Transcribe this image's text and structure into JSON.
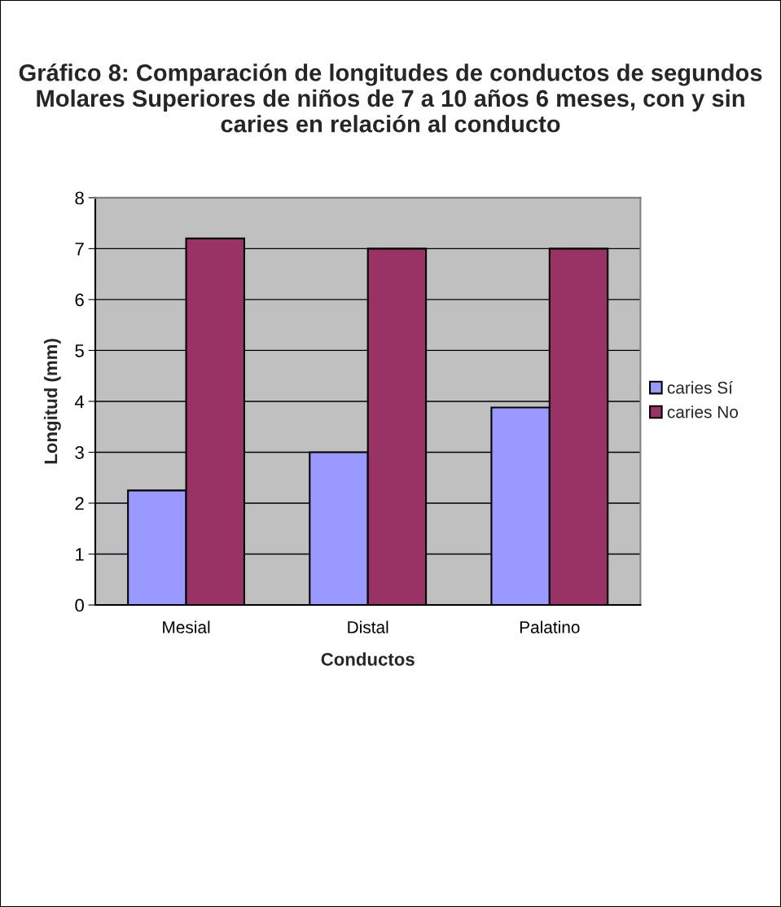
{
  "chart_data": {
    "type": "bar",
    "title": "Gráfico 8: Comparación de longitudes de conductos de segundos Molares Superiores de niños de 7 a 10 años 6 meses, con y sin caries en relación al conducto",
    "xlabel": "Conductos",
    "ylabel": "Longitud (mm)",
    "categories": [
      "Mesial",
      "Distal",
      "Palatino"
    ],
    "series": [
      {
        "name": "caries Sí",
        "color": "#9999ff",
        "values": [
          2.25,
          3.0,
          3.88
        ]
      },
      {
        "name": "caries No",
        "color": "#993366",
        "values": [
          7.2,
          7.0,
          7.0
        ]
      }
    ],
    "ylim": [
      0,
      8
    ],
    "yticks": [
      0,
      1,
      2,
      3,
      4,
      5,
      6,
      7,
      8
    ],
    "grid": "y",
    "legend": "right"
  }
}
